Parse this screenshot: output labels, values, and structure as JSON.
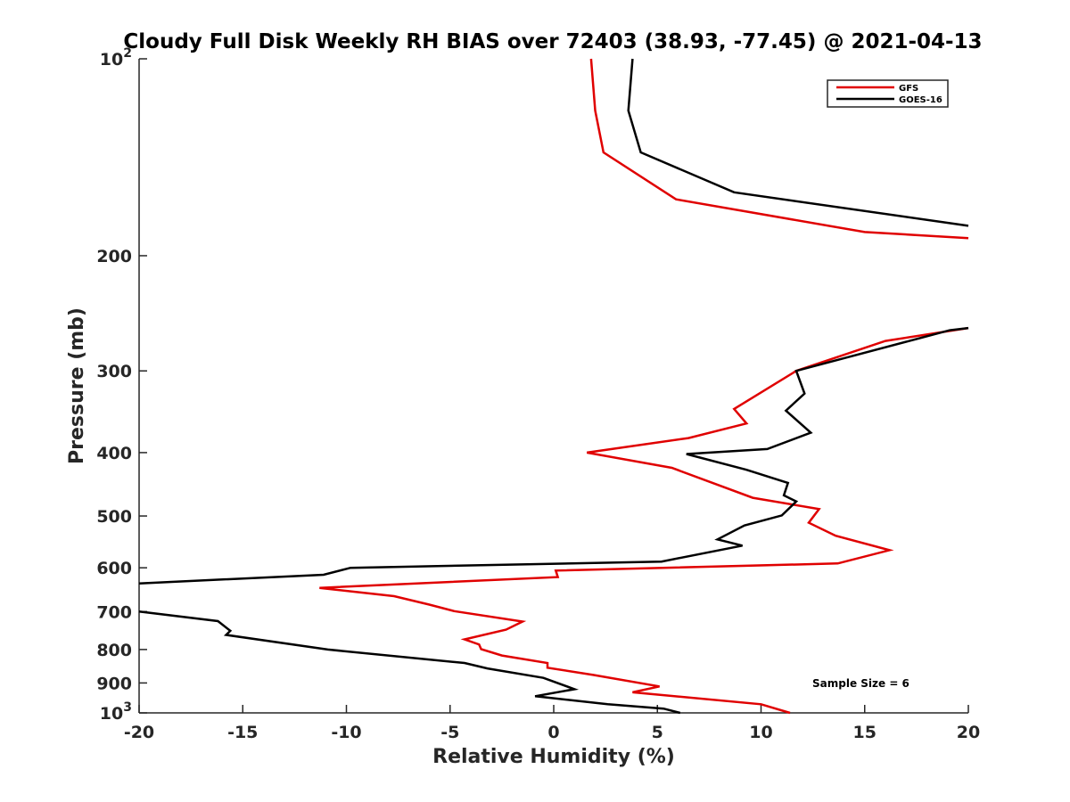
{
  "chart_data": {
    "type": "line",
    "title": "Cloudy Full Disk Weekly RH BIAS over 72403 (38.93, -77.45) @ 2021-04-13",
    "xlabel": "Relative Humidity (%)",
    "ylabel": "Pressure (mb)",
    "xlim": [
      -20,
      20
    ],
    "ylim": [
      100,
      1000
    ],
    "y_scale": "log",
    "y_reversed": true,
    "grid": false,
    "legend_position": "top-right",
    "x_ticks": [
      "-20",
      "-15",
      "-10",
      "-5",
      "0",
      "5",
      "10",
      "15",
      "20"
    ],
    "y_ticks": [
      {
        "value": 100,
        "label": "10",
        "sup": "2"
      },
      {
        "value": 200,
        "label": "200",
        "sup": ""
      },
      {
        "value": 300,
        "label": "300",
        "sup": ""
      },
      {
        "value": 400,
        "label": "400",
        "sup": ""
      },
      {
        "value": 500,
        "label": "500",
        "sup": ""
      },
      {
        "value": 600,
        "label": "600",
        "sup": ""
      },
      {
        "value": 700,
        "label": "700",
        "sup": ""
      },
      {
        "value": 800,
        "label": "800",
        "sup": ""
      },
      {
        "value": 900,
        "label": "900",
        "sup": ""
      },
      {
        "value": 1000,
        "label": "10",
        "sup": "3"
      }
    ],
    "annotation": "Sample Size = 6",
    "series": [
      {
        "name": "GFS",
        "color": "#e00000",
        "segments": [
          [
            [
              1.8,
              100
            ],
            [
              2.0,
              120
            ],
            [
              2.4,
              139
            ],
            [
              5.9,
              164
            ],
            [
              15.0,
              184
            ],
            [
              20.0,
              188
            ]
          ],
          [
            [
              20.0,
              258
            ],
            [
              16.0,
              270
            ],
            [
              11.7,
              300
            ],
            [
              8.7,
              343
            ],
            [
              9.3,
              361
            ],
            [
              6.5,
              380
            ],
            [
              1.6,
              400
            ],
            [
              5.7,
              422
            ],
            [
              9.6,
              469
            ],
            [
              12.8,
              488
            ],
            [
              12.3,
              512
            ],
            [
              13.6,
              536
            ],
            [
              16.2,
              564
            ],
            [
              13.7,
              591
            ],
            [
              0.1,
              606
            ],
            [
              0.2,
              620
            ],
            [
              -11.3,
              644
            ],
            [
              -7.7,
              663
            ],
            [
              -6.0,
              683
            ],
            [
              -4.8,
              699
            ],
            [
              -1.5,
              725
            ],
            [
              -2.3,
              746
            ],
            [
              -4.3,
              772
            ],
            [
              -3.6,
              786
            ],
            [
              -3.5,
              799
            ],
            [
              -2.5,
              817
            ],
            [
              -0.3,
              839
            ],
            [
              -0.3,
              853
            ],
            [
              1.9,
              875
            ],
            [
              5.1,
              911
            ],
            [
              3.8,
              930
            ],
            [
              10.0,
              970
            ],
            [
              11.4,
              1000
            ]
          ]
        ]
      },
      {
        "name": "GOES-16",
        "color": "#000000",
        "segments": [
          [
            [
              3.8,
              100
            ],
            [
              3.6,
              120
            ],
            [
              4.2,
              139
            ],
            [
              8.7,
              160
            ],
            [
              20.0,
              180
            ]
          ],
          [
            [
              20.0,
              258
            ],
            [
              19.1,
              260
            ],
            [
              11.7,
              300
            ],
            [
              12.1,
              325
            ],
            [
              11.2,
              345
            ],
            [
              12.4,
              373
            ],
            [
              10.3,
              395
            ],
            [
              6.4,
              402
            ],
            [
              9.3,
              425
            ],
            [
              11.3,
              445
            ],
            [
              11.1,
              465
            ],
            [
              11.7,
              475
            ],
            [
              11.0,
              499
            ],
            [
              9.2,
              517
            ],
            [
              7.9,
              543
            ],
            [
              9.1,
              555
            ],
            [
              5.2,
              587
            ],
            [
              -9.8,
              600
            ],
            [
              -11.1,
              615
            ],
            [
              -20.0,
              634
            ]
          ],
          [
            [
              -20.0,
              700
            ],
            [
              -16.2,
              724
            ],
            [
              -15.6,
              749
            ],
            [
              -15.8,
              760
            ],
            [
              -10.9,
              800
            ],
            [
              -4.3,
              839
            ],
            [
              -3.2,
              855
            ],
            [
              -0.5,
              884
            ],
            [
              1.0,
              920
            ],
            [
              -0.9,
              943
            ],
            [
              2.6,
              970
            ],
            [
              5.3,
              985
            ],
            [
              6.1,
              1000
            ]
          ]
        ]
      }
    ]
  }
}
